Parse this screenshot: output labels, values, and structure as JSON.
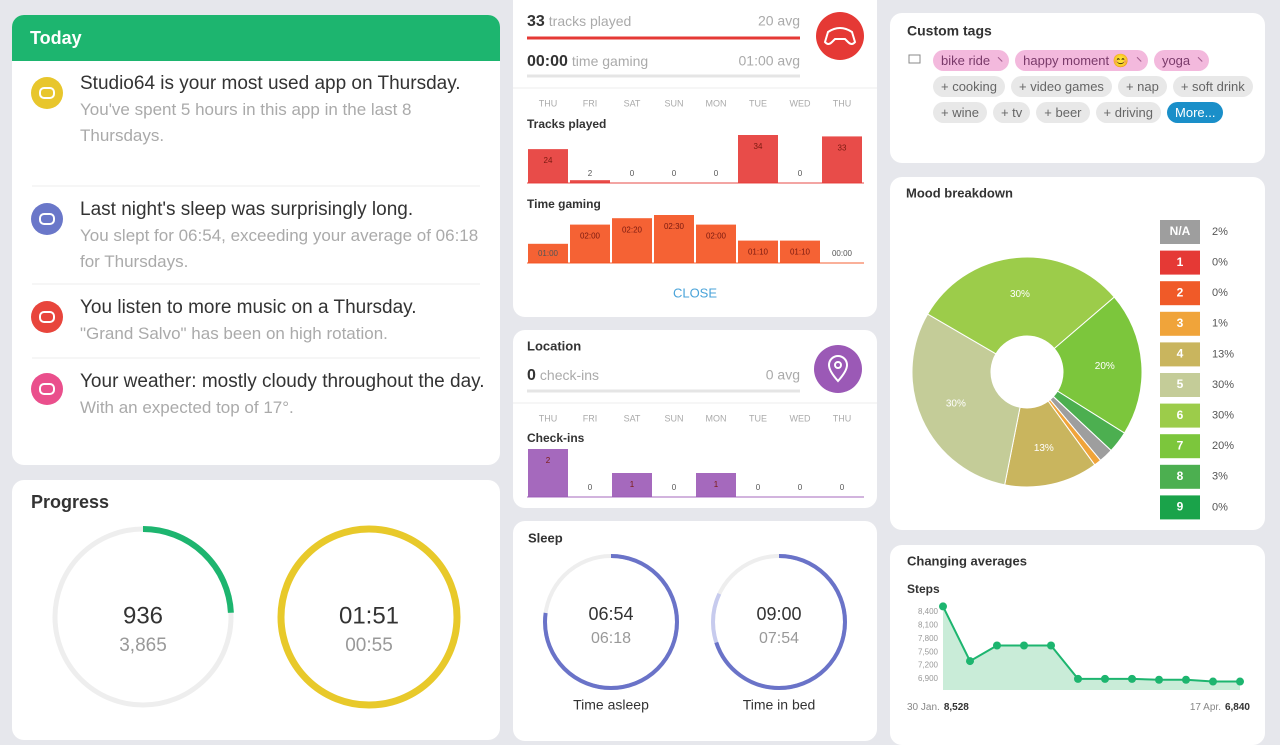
{
  "today": {
    "title": "Today",
    "items": [
      {
        "title": "Studio64 is your most used app on Thursday.",
        "detail": "You've spent 5 hours in this app in the last 8 Thursdays.",
        "color": "#e8c62c"
      },
      {
        "title": "Last night's sleep was surprisingly long.",
        "detail": "You slept for 06:54, exceeding your average of 06:18 for Thursdays.",
        "color": "#6a77c9"
      },
      {
        "title": "You listen to more music on a Thursday.",
        "detail": "\"Grand Salvo\" has been on high rotation.",
        "color": "#e8453c"
      },
      {
        "title": "Your weather: mostly cloudy throughout the day.",
        "detail": "With an expected top of 17°.",
        "color": "#ea4f8c"
      }
    ]
  },
  "progress": {
    "title": "Progress",
    "steps": {
      "value": 936,
      "label": "936",
      "goal": 3865,
      "goal_label": "3,865",
      "color": "#1db56f"
    },
    "time": {
      "value": 111,
      "label": "01:51",
      "goal": 55,
      "goal_label": "00:55",
      "color": "#e8c92a"
    }
  },
  "media": {
    "tracks": "33",
    "tracks_label": "tracks played",
    "tracks_avg": "20 avg",
    "gaming": "00:00",
    "gaming_label": "time gaming",
    "gaming_avg": "01:00 avg",
    "days": [
      "THU",
      "FRI",
      "SAT",
      "SUN",
      "MON",
      "TUE",
      "WED",
      "THU"
    ],
    "charts": [
      {
        "title": "Tracks played",
        "values": [
          24,
          2,
          0,
          0,
          0,
          34,
          0,
          33
        ],
        "color": "#e53935"
      },
      {
        "title": "Time gaming",
        "values": [
          60,
          120,
          140,
          150,
          120,
          70,
          70,
          0
        ],
        "value_labels": [
          "01:00",
          "02:00",
          "02:20",
          "02:30",
          "02:00",
          "01:10",
          "01:10",
          "00:00"
        ],
        "color": "#f4511e"
      }
    ],
    "close": "CLOSE"
  },
  "location": {
    "title": "Location",
    "count": "0",
    "count_label": "check-ins",
    "avg": "0 avg",
    "days": [
      "THU",
      "FRI",
      "SAT",
      "SUN",
      "MON",
      "TUE",
      "WED",
      "THU"
    ],
    "charts": [
      {
        "title": "Check-ins",
        "values": [
          2,
          0,
          1,
          0,
          1,
          0,
          0,
          0
        ],
        "color": "#9b59b6"
      }
    ]
  },
  "sleep": {
    "title": "Sleep",
    "rings": [
      {
        "value": "06:54",
        "avg": "06:18",
        "label": "Time asleep"
      },
      {
        "value": "09:00",
        "avg": "07:54",
        "label": "Time in bed"
      }
    ]
  },
  "tags": {
    "title": "Custom tags",
    "selected": [
      "bike ride",
      "happy moment 😊",
      "yoga"
    ],
    "available": [
      "+ cooking",
      "+ video games",
      "+ nap",
      "+ soft drink",
      "+ wine",
      "+ tv",
      "+ beer",
      "+ driving"
    ],
    "more": "More..."
  },
  "chart_data": [
    {
      "type": "pie",
      "title": "Mood breakdown",
      "categories": [
        "N/A",
        "1",
        "2",
        "3",
        "4",
        "5",
        "6",
        "7",
        "8",
        "9"
      ],
      "values": [
        2,
        0,
        0,
        1,
        13,
        30,
        30,
        20,
        3,
        0
      ],
      "value_labels": [
        "2%",
        "0%",
        "0%",
        "1%",
        "13%",
        "30%",
        "30%",
        "20%",
        "3%",
        "0%"
      ],
      "colors": [
        "#9e9e9e",
        "#e53935",
        "#f05a28",
        "#f0a43a",
        "#c9b55e",
        "#c4cc98",
        "#9ccc4a",
        "#7cc63c",
        "#4caf50",
        "#1aa34a"
      ]
    },
    {
      "type": "line",
      "title": "Changing averages",
      "subtitle": "Steps",
      "x": [
        "30 Jan.",
        null,
        null,
        null,
        null,
        null,
        null,
        null,
        null,
        null,
        null,
        "17 Apr."
      ],
      "values": [
        8528,
        7300,
        7650,
        7650,
        7650,
        6900,
        6900,
        6900,
        6880,
        6880,
        6840,
        6840
      ],
      "value_labels": [
        "8,528",
        null,
        null,
        null,
        null,
        null,
        null,
        null,
        null,
        null,
        null,
        "6,840"
      ],
      "color": "#1db56f",
      "ylim": [
        6650,
        8650
      ],
      "grid": false,
      "yticks": [
        {
          "value": 8400,
          "label": "8,400"
        },
        {
          "value": 8100,
          "label": "8,100"
        },
        {
          "value": 7800,
          "label": "7,800"
        },
        {
          "value": 7500,
          "label": "7,500"
        },
        {
          "value": 7200,
          "label": "7,200"
        },
        {
          "value": 6900,
          "label": "6,900"
        }
      ]
    }
  ]
}
